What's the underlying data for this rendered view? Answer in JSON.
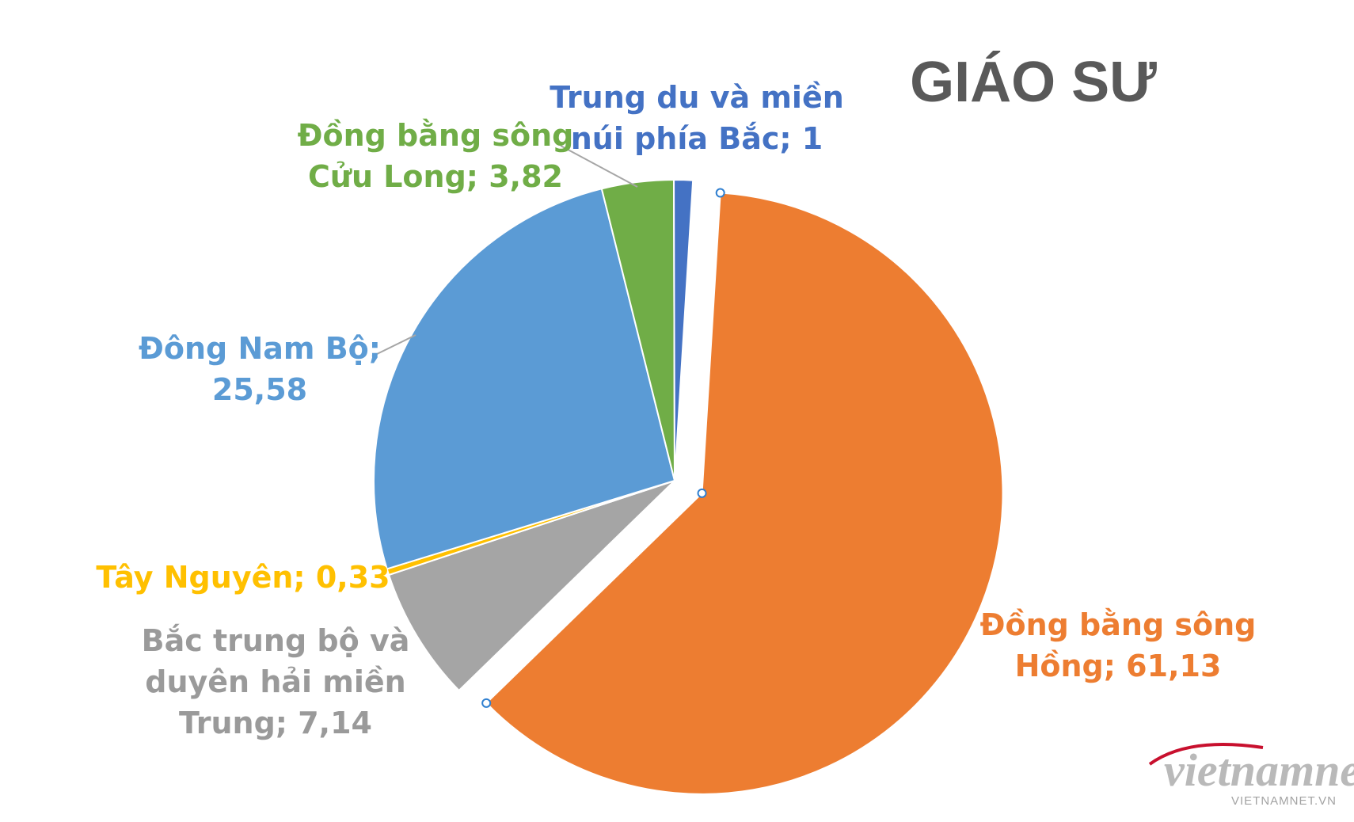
{
  "chart_data": {
    "type": "pie",
    "title": "GIÁO SƯ",
    "slices": [
      {
        "label_lines": [
          "Đồng bằng sông",
          "Hồng; 61,13"
        ],
        "value": 61.13,
        "color": "#ED7D31",
        "exploded": true
      },
      {
        "label_lines": [
          "Bắc trung bộ và",
          "duyên hải miền",
          "Trung; 7,14"
        ],
        "value": 7.14,
        "color": "#A5A5A5",
        "exploded": false
      },
      {
        "label_lines": [
          "Tây Nguyên; 0,33"
        ],
        "value": 0.33,
        "color": "#FFC000",
        "exploded": false
      },
      {
        "label_lines": [
          "Đông Nam Bộ;",
          "25,58"
        ],
        "value": 25.58,
        "color": "#5B9BD5",
        "exploded": false
      },
      {
        "label_lines": [
          "Đồng bằng sông",
          "Cửu Long; 3,82"
        ],
        "value": 3.82,
        "color": "#70AD47",
        "exploded": false
      },
      {
        "label_lines": [
          "Trung du và miền",
          "núi phía Bắc; 1"
        ],
        "value": 1,
        "color": "#4472C4",
        "exploded": false
      }
    ],
    "legend": "none"
  },
  "watermark": {
    "brand": "vietnamnet",
    "url": "VIETNAMNET.VN",
    "accent_color": "#c8102e"
  }
}
